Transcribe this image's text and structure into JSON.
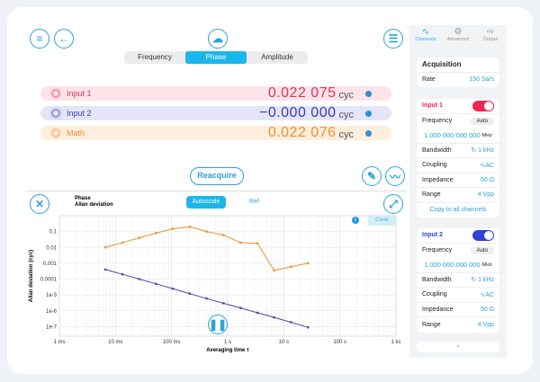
{
  "tabs": {
    "items": [
      "Frequency",
      "Phase",
      "Amplitude"
    ],
    "active": "Phase"
  },
  "readings": [
    {
      "label": "Input 1",
      "value": "0.022 075",
      "unit": "cyc",
      "color": "#e0305a",
      "bg": "#fde4ea"
    },
    {
      "label": "Input 2",
      "value": "−0.000 000",
      "unit": "cyc",
      "color": "#3a3ab8",
      "bg": "#e4e5f8"
    },
    {
      "label": "Math",
      "value": "0.022 076",
      "unit": "cyc",
      "color": "#ee9030",
      "bg": "#fdeedd"
    }
  ],
  "reacquire": "Reacquire",
  "plot": {
    "title1": "Phase",
    "title2": "Allan deviation",
    "autoscale": "Autoscale",
    "ref": "Ref",
    "clear": "Clear"
  },
  "chart_data": {
    "type": "line",
    "xlabel": "Averaging time τ",
    "ylabel": "Allan deviation (cyc)",
    "xscale": "log",
    "yscale": "log",
    "grid": true,
    "xlim": [
      0.001,
      1000
    ],
    "ylim": [
      2.5e-08,
      1
    ],
    "xticks": [
      {
        "v": 0.001,
        "l": "1 ms"
      },
      {
        "v": 0.01,
        "l": "10 ms"
      },
      {
        "v": 0.1,
        "l": "100 ms"
      },
      {
        "v": 1,
        "l": "1 s"
      },
      {
        "v": 10,
        "l": "10 s"
      },
      {
        "v": 100,
        "l": "100 s"
      },
      {
        "v": 1000,
        "l": "1 ks"
      }
    ],
    "yticks": [
      {
        "v": 0.1,
        "l": "0.1"
      },
      {
        "v": 0.01,
        "l": "0.01"
      },
      {
        "v": 0.001,
        "l": "0.001"
      },
      {
        "v": 0.0001,
        "l": "0.0001"
      },
      {
        "v": 1e-05,
        "l": "1e-5"
      },
      {
        "v": 1e-06,
        "l": "1e-6"
      },
      {
        "v": 1e-07,
        "l": "1e-7"
      }
    ],
    "x": [
      0.0066,
      0.0133,
      0.0266,
      0.053,
      0.105,
      0.21,
      0.42,
      0.84,
      1.7,
      3.4,
      6.7,
      13.4,
      27
    ],
    "series": [
      {
        "color": "#ee9030",
        "values": [
          0.01,
          0.02,
          0.04,
          0.08,
          0.15,
          0.2,
          0.1,
          0.06,
          0.02,
          0.018,
          0.00035,
          0.0006,
          0.001
        ]
      },
      {
        "color": "#4a4ab0",
        "values": [
          0.0004,
          0.0002,
          0.0001,
          5e-05,
          2.5e-05,
          1.2e-05,
          6e-06,
          3e-06,
          1.5e-06,
          7.5e-07,
          3.8e-07,
          1.9e-07,
          9e-08
        ]
      }
    ]
  },
  "sidebar": {
    "tabs": [
      "Channels",
      "Advanced",
      "Output"
    ],
    "acq": {
      "title": "Acquisition",
      "rate_label": "Rate",
      "rate": "150 Sa/s"
    },
    "in1": {
      "title": "Input 1",
      "color": "#ee2850",
      "freq_label": "Frequency",
      "auto": "Auto",
      "freq": "1.000 000 000 000",
      "freq_unit": "MHz",
      "bw_label": "Bandwidth",
      "bw": "1 kHz",
      "coup_label": "Coupling",
      "coup": "AC",
      "imp_label": "Impedance",
      "imp": "50 Ω",
      "range_label": "Range",
      "range": "4 Vpp",
      "copy": "Copy to all channels"
    },
    "in2": {
      "title": "Input 2",
      "color": "#3440d8",
      "freq_label": "Frequency",
      "auto": "Auto",
      "freq": "1.000 000 000 000",
      "freq_unit": "MHz",
      "bw_label": "Bandwidth",
      "bw": "1 kHz",
      "coup_label": "Coupling",
      "coup": "AC",
      "imp_label": "Impedance",
      "imp": "50 Ω",
      "range_label": "Range",
      "range": "4 Vpp"
    }
  }
}
